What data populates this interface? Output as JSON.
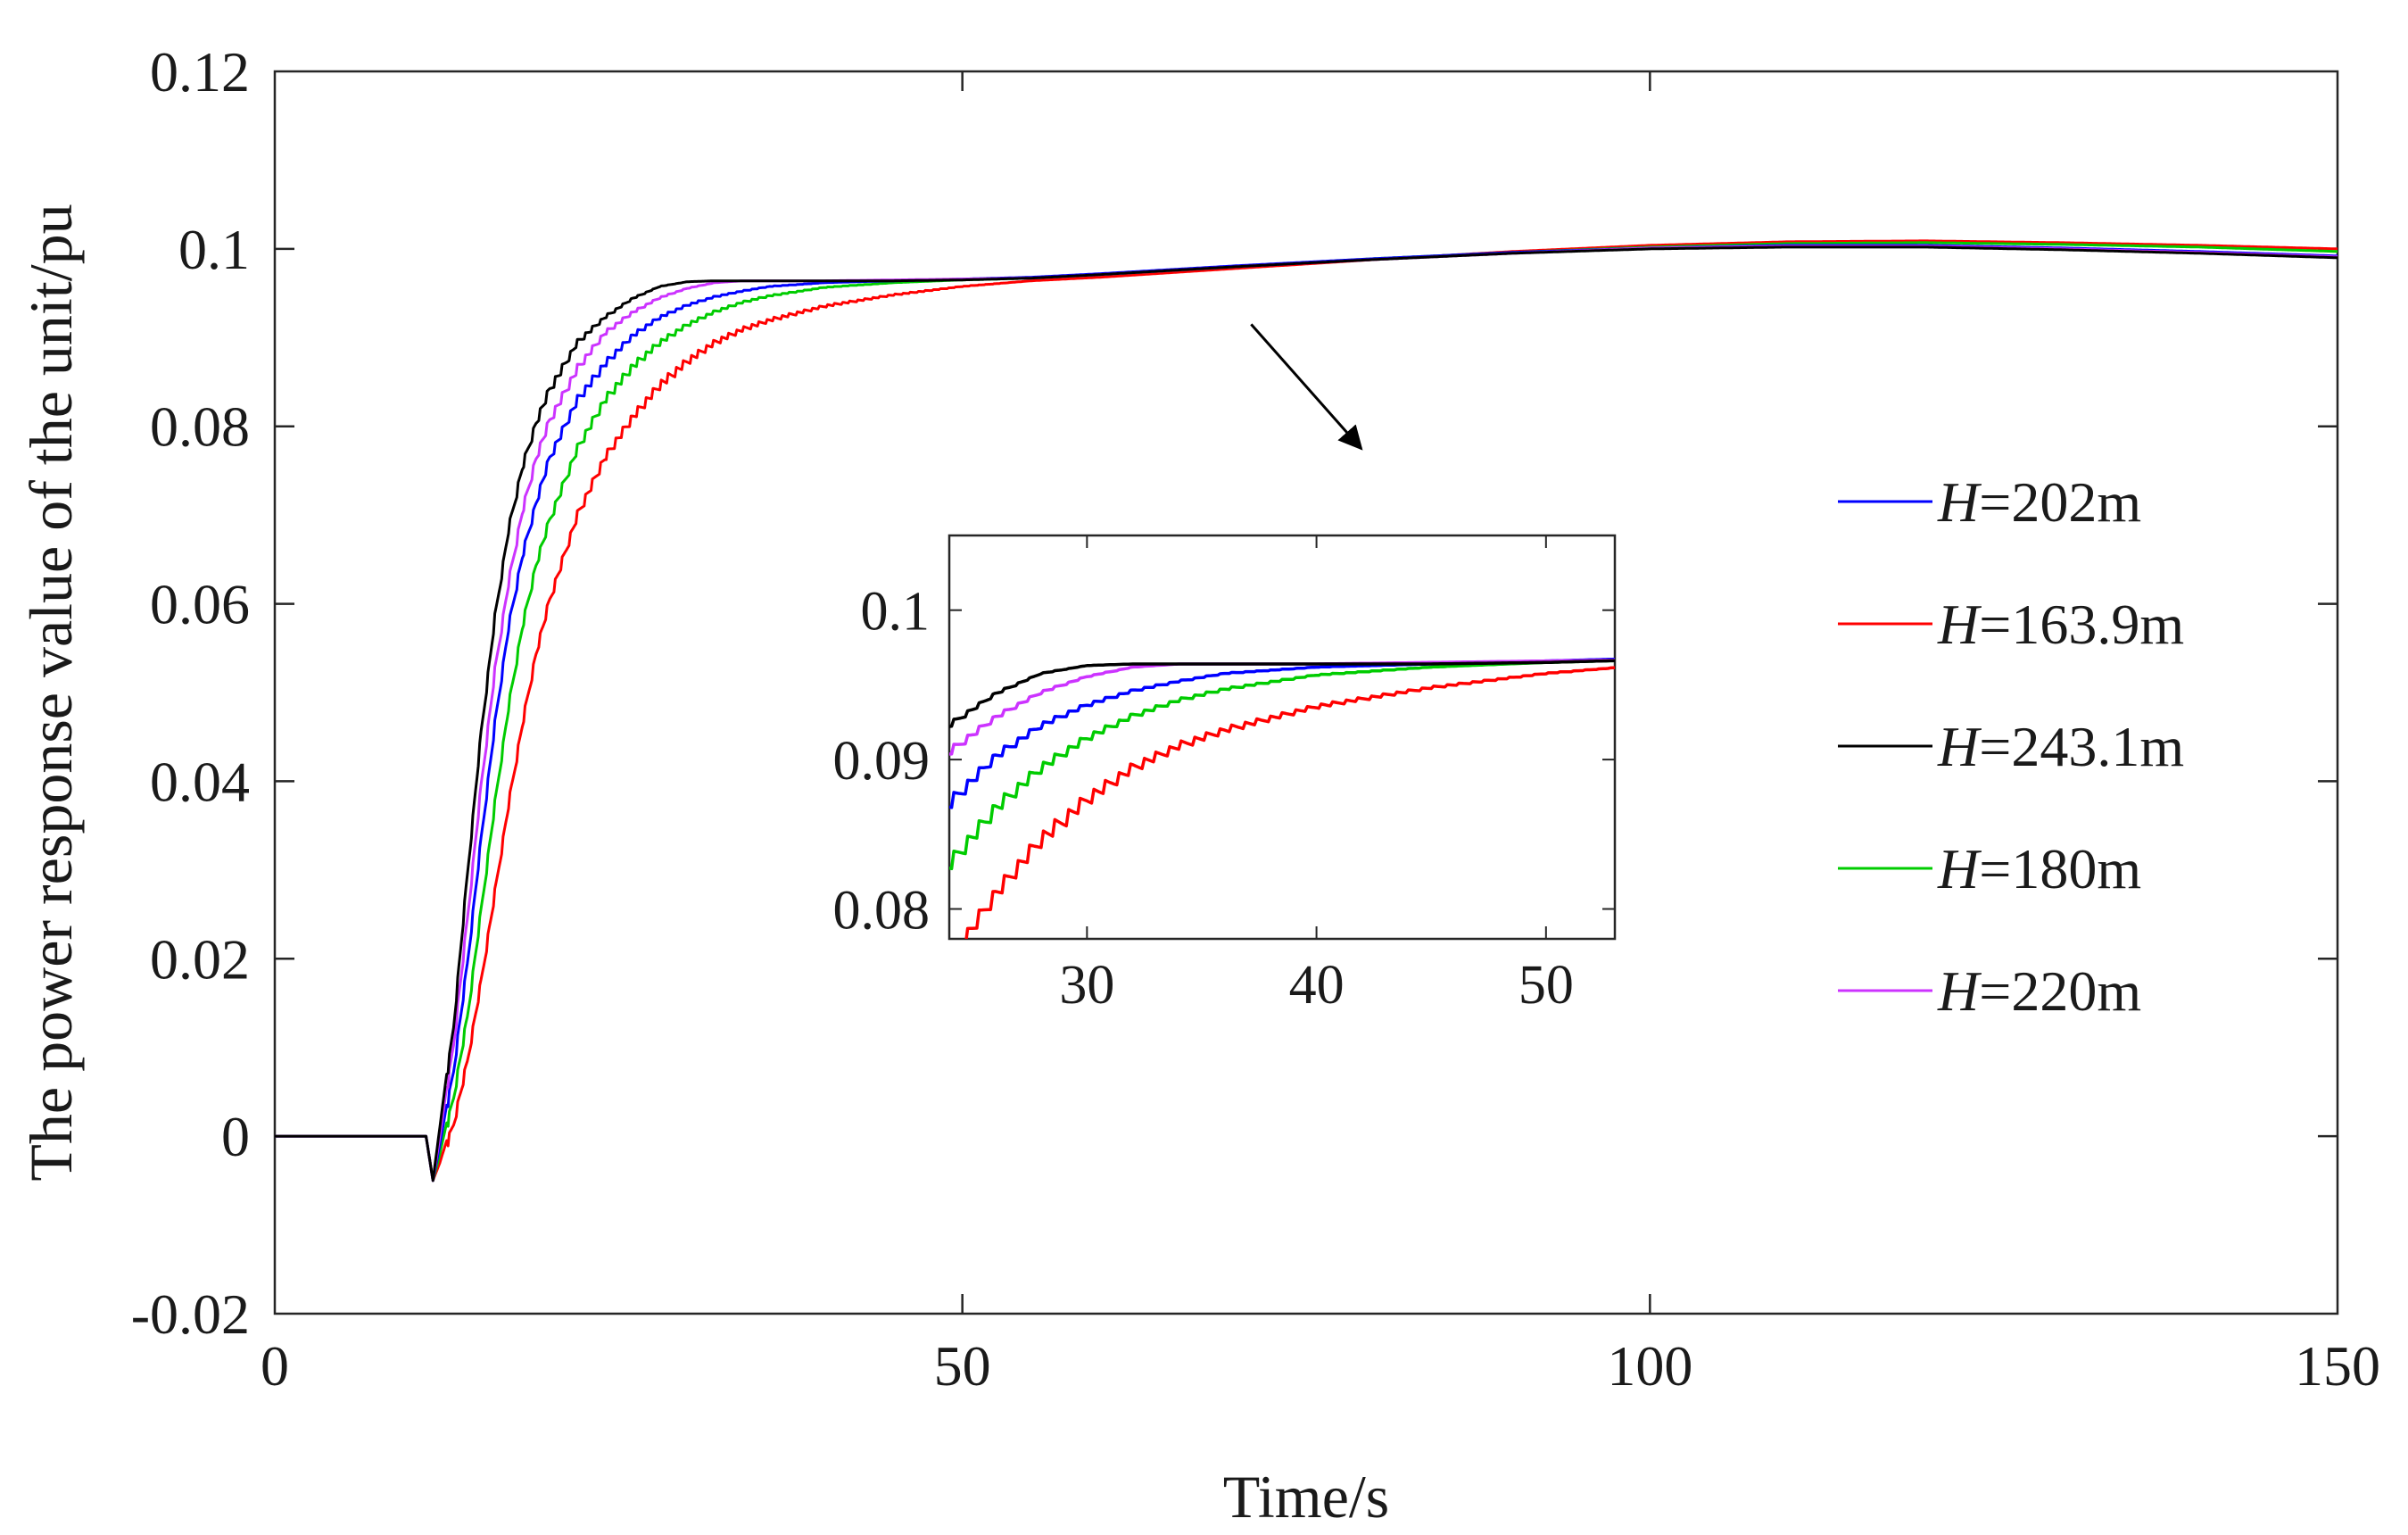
{
  "chart_data": {
    "type": "line",
    "title": "",
    "xlabel": "Time/s",
    "ylabel": "The power response value of the unit/pu",
    "xlim": [
      0,
      150
    ],
    "ylim": [
      -0.02,
      0.12
    ],
    "xticks": [
      0,
      50,
      100,
      150
    ],
    "yticks": [
      -0.02,
      0,
      0.02,
      0.04,
      0.06,
      0.08,
      0.1,
      0.12
    ],
    "xtick_labels": [
      "0",
      "50",
      "100",
      "150"
    ],
    "ytick_labels": [
      "-0.02",
      "0",
      "0.02",
      "0.04",
      "0.06",
      "0.08",
      "0.1",
      "0.12"
    ],
    "grid": false,
    "legend_position": "right",
    "step_time": 11,
    "series": [
      {
        "name": "H=202m",
        "head_var": "H",
        "head_value": "=202m",
        "color": "#0000ff",
        "x": [
          0,
          11,
          11.5,
          12,
          13,
          14,
          15,
          16,
          17,
          18,
          19,
          20,
          22,
          24,
          26,
          28,
          30,
          32,
          34,
          36,
          40,
          45,
          50,
          55,
          60,
          70,
          80,
          90,
          100,
          110,
          120,
          130,
          140,
          150
        ],
        "y": [
          0,
          0,
          -0.005,
          -0.001,
          0.008,
          0.02,
          0.034,
          0.047,
          0.058,
          0.066,
          0.072,
          0.077,
          0.0835,
          0.0875,
          0.0905,
          0.0925,
          0.0938,
          0.0947,
          0.0953,
          0.0958,
          0.0962,
          0.0964,
          0.0966,
          0.0968,
          0.0972,
          0.0981,
          0.0989,
          0.0996,
          0.1001,
          0.1004,
          0.1004,
          0.1001,
          0.0997,
          0.0992
        ]
      },
      {
        "name": "H=163.9m",
        "head_var": "H",
        "head_value": "=163.9m",
        "color": "#ff0000",
        "x": [
          0,
          11,
          11.5,
          12,
          13,
          14,
          15,
          16,
          17,
          18,
          19,
          20,
          22,
          24,
          26,
          28,
          30,
          32,
          34,
          36,
          40,
          45,
          50,
          55,
          60,
          70,
          80,
          90,
          100,
          110,
          120,
          130,
          140,
          150
        ],
        "y": [
          0,
          0,
          -0.005,
          -0.003,
          0.002,
          0.009,
          0.018,
          0.028,
          0.038,
          0.047,
          0.055,
          0.061,
          0.0705,
          0.077,
          0.0815,
          0.0852,
          0.0878,
          0.0898,
          0.0912,
          0.0922,
          0.0937,
          0.0949,
          0.0958,
          0.0964,
          0.0968,
          0.0978,
          0.0988,
          0.0997,
          0.1004,
          0.1008,
          0.1009,
          0.1007,
          0.1004,
          0.1
        ]
      },
      {
        "name": "H=243.1m",
        "head_var": "H",
        "head_value": "=243.1m",
        "color": "#000000",
        "x": [
          0,
          11,
          11.5,
          12,
          13,
          14,
          15,
          16,
          17,
          18,
          19,
          20,
          22,
          24,
          26,
          28,
          30,
          32,
          34,
          36,
          40,
          45,
          50,
          55,
          60,
          70,
          80,
          90,
          100,
          110,
          120,
          130,
          140,
          150
        ],
        "y": [
          0,
          0,
          -0.005,
          0.001,
          0.013,
          0.03,
          0.046,
          0.059,
          0.069,
          0.076,
          0.081,
          0.0847,
          0.0898,
          0.0925,
          0.0945,
          0.0958,
          0.0963,
          0.0964,
          0.0964,
          0.0964,
          0.0964,
          0.0964,
          0.0965,
          0.0967,
          0.0971,
          0.098,
          0.0988,
          0.0995,
          0.1,
          0.1002,
          0.1002,
          0.0999,
          0.0995,
          0.099
        ]
      },
      {
        "name": "H=180m",
        "head_var": "H",
        "head_value": "=180m",
        "color": "#00cc00",
        "x": [
          0,
          11,
          11.5,
          12,
          13,
          14,
          15,
          16,
          17,
          18,
          19,
          20,
          22,
          24,
          26,
          28,
          30,
          32,
          34,
          36,
          40,
          45,
          50,
          55,
          60,
          70,
          80,
          90,
          100,
          110,
          120,
          130,
          140,
          150
        ],
        "y": [
          0,
          0,
          -0.005,
          -0.002,
          0.005,
          0.014,
          0.026,
          0.038,
          0.049,
          0.058,
          0.065,
          0.07,
          0.078,
          0.0835,
          0.0872,
          0.0898,
          0.0917,
          0.0931,
          0.0941,
          0.0948,
          0.0957,
          0.0962,
          0.0965,
          0.0967,
          0.0971,
          0.098,
          0.0989,
          0.0996,
          0.1002,
          0.1006,
          0.1007,
          0.1005,
          0.1002,
          0.0997
        ]
      },
      {
        "name": "H=220m",
        "head_var": "H",
        "head_value": "=220m",
        "color": "#cc33ff",
        "x": [
          0,
          11,
          11.5,
          12,
          13,
          14,
          15,
          16,
          17,
          18,
          19,
          20,
          22,
          24,
          26,
          28,
          30,
          32,
          34,
          36,
          40,
          45,
          50,
          55,
          60,
          70,
          80,
          90,
          100,
          110,
          120,
          130,
          140,
          150
        ],
        "y": [
          0,
          0,
          -0.005,
          0.0,
          0.011,
          0.025,
          0.04,
          0.053,
          0.063,
          0.071,
          0.077,
          0.0812,
          0.087,
          0.0908,
          0.093,
          0.0946,
          0.0956,
          0.0962,
          0.0964,
          0.0964,
          0.0964,
          0.0965,
          0.0966,
          0.0967,
          0.0971,
          0.098,
          0.0988,
          0.0995,
          0.1001,
          0.1003,
          0.1003,
          0.1,
          0.0996,
          0.0991
        ]
      }
    ],
    "inset": {
      "xlim": [
        24,
        53
      ],
      "ylim": [
        0.078,
        0.105
      ],
      "xticks": [
        30,
        40,
        50
      ],
      "yticks": [
        0.08,
        0.09,
        0.1
      ],
      "xtick_labels": [
        "30",
        "40",
        "50"
      ],
      "ytick_labels": [
        "0.08",
        "0.09",
        "0.1"
      ]
    },
    "annotations": [
      {
        "type": "arrow",
        "text": "",
        "from": [
          71,
          0.0915
        ],
        "to": [
          79,
          0.0775
        ]
      }
    ]
  }
}
